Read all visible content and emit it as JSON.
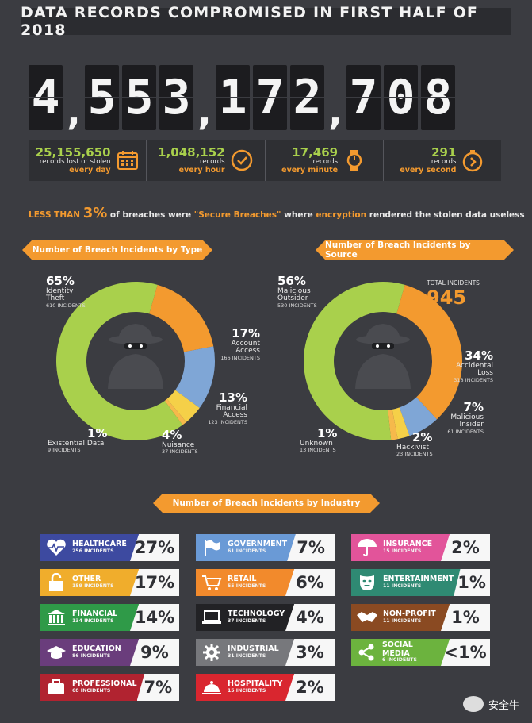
{
  "title": "DATA RECORDS COMPROMISED IN FIRST HALF OF 2018",
  "counter": [
    "4",
    ",",
    "5",
    "5",
    "3",
    ",",
    "1",
    "7",
    "2",
    ",",
    "7",
    "0",
    "8"
  ],
  "rates": [
    {
      "value": "25,155,650",
      "label": "records lost or stolen",
      "unit": "every day",
      "icon": "calendar-icon"
    },
    {
      "value": "1,048,152",
      "label": "records",
      "unit": "every hour",
      "icon": "clock-icon"
    },
    {
      "value": "17,469",
      "label": "records",
      "unit": "every minute",
      "icon": "watch-icon"
    },
    {
      "value": "291",
      "label": "records",
      "unit": "every second",
      "icon": "stopwatch-icon"
    }
  ],
  "note": {
    "lead": "LESS THAN",
    "pct": "3%",
    "mid1": " of breaches were ",
    "quote": "\"Secure Breaches\"",
    "mid2": " where ",
    "enc": "encryption",
    "tail": " rendered the stolen data useless"
  },
  "ribbons": {
    "type": "Number of Breach Incidents by Type",
    "source": "Number of Breach Incidents by Source",
    "industry": "Number of Breach Incidents by Industry"
  },
  "total": {
    "label": "TOTAL INCIDENTS",
    "value": "945"
  },
  "colors": {
    "green": "#a9d04c",
    "orange": "#f39a2f",
    "blue": "#7fa6d6",
    "yellow": "#f5d048",
    "orange_light": "#f6b94b"
  },
  "chart_data": [
    {
      "type": "pie",
      "title": "Number of Breach Incidents by Type",
      "slices": [
        {
          "pct": "65%",
          "name": "Identity Theft",
          "incidents": "610 INCIDENTS",
          "value": 610,
          "color": "#a9d04c"
        },
        {
          "pct": "17%",
          "name": "Account Access",
          "incidents": "166 INCIDENTS",
          "value": 166,
          "color": "#f39a2f"
        },
        {
          "pct": "13%",
          "name": "Financial Access",
          "incidents": "123 INCIDENTS",
          "value": 123,
          "color": "#7fa6d6"
        },
        {
          "pct": "4%",
          "name": "Nuisance",
          "incidents": "37 INCIDENTS",
          "value": 37,
          "color": "#f5d048"
        },
        {
          "pct": "1%",
          "name": "Existential Data",
          "incidents": "9 INCIDENTS",
          "value": 9,
          "color": "#f6b94b"
        }
      ]
    },
    {
      "type": "pie",
      "title": "Number of Breach Incidents by Source",
      "slices": [
        {
          "pct": "56%",
          "name": "Malicious Outsider",
          "incidents": "530 INCIDENTS",
          "value": 530,
          "color": "#a9d04c"
        },
        {
          "pct": "34%",
          "name": "Accidental Loss",
          "incidents": "318 INCIDENTS",
          "value": 318,
          "color": "#f39a2f"
        },
        {
          "pct": "7%",
          "name": "Malicious Insider",
          "incidents": "61 INCIDENTS",
          "value": 61,
          "color": "#7fa6d6"
        },
        {
          "pct": "2%",
          "name": "Hackivist",
          "incidents": "23 INCIDENTS",
          "value": 23,
          "color": "#f5d048"
        },
        {
          "pct": "1%",
          "name": "Unknown",
          "incidents": "13 INCIDENTS",
          "value": 13,
          "color": "#f6b94b"
        }
      ]
    },
    {
      "type": "table",
      "title": "Number of Breach Incidents by Industry",
      "rows": [
        {
          "name": "HEALTHCARE",
          "incidents": "256 INCIDENTS",
          "pct": "27%",
          "color": "#3d4aa0",
          "icon": "heartbeat-icon"
        },
        {
          "name": "OTHER",
          "incidents": "159 INCIDENTS",
          "pct": "17%",
          "color": "#f0ad2c",
          "icon": "padlock-icon"
        },
        {
          "name": "FINANCIAL",
          "incidents": "134 INCIDENTS",
          "pct": "14%",
          "color": "#2f9a48",
          "icon": "bank-icon"
        },
        {
          "name": "EDUCATION",
          "incidents": "86 INCIDENTS",
          "pct": "9%",
          "color": "#6a3d7c",
          "icon": "graduation-cap-icon"
        },
        {
          "name": "PROFESSIONAL",
          "incidents": "68 INCIDENTS",
          "pct": "7%",
          "color": "#b12330",
          "icon": "briefcase-icon"
        },
        {
          "name": "GOVERNMENT",
          "incidents": "61 INCIDENTS",
          "pct": "7%",
          "color": "#6a9ad6",
          "icon": "flag-icon"
        },
        {
          "name": "RETAIL",
          "incidents": "55 INCIDENTS",
          "pct": "6%",
          "color": "#f28a2c",
          "icon": "cart-icon"
        },
        {
          "name": "TECHNOLOGY",
          "incidents": "37 INCIDENTS",
          "pct": "4%",
          "color": "#222225",
          "icon": "laptop-icon"
        },
        {
          "name": "INDUSTRIAL",
          "incidents": "31 INCIDENTS",
          "pct": "3%",
          "color": "#77787c",
          "icon": "gear-icon"
        },
        {
          "name": "HOSPITALITY",
          "incidents": "15 INCIDENTS",
          "pct": "2%",
          "color": "#d9262f",
          "icon": "bell-icon"
        },
        {
          "name": "INSURANCE",
          "incidents": "15 INCIDENTS",
          "pct": "2%",
          "color": "#e2549a",
          "icon": "umbrella-icon"
        },
        {
          "name": "ENTERTAINMENT",
          "incidents": "11 INCIDENTS",
          "pct": "1%",
          "color": "#2f8a73",
          "icon": "mask-icon"
        },
        {
          "name": "NON-PROFIT",
          "incidents": "11 INCIDENTS",
          "pct": "1%",
          "color": "#8a4a22",
          "icon": "handshake-icon"
        },
        {
          "name": "SOCIAL MEDIA",
          "incidents": "6 INCIDENTS",
          "pct": "<1%",
          "color": "#6cb33e",
          "icon": "share-icon"
        }
      ]
    }
  ],
  "watermark": "安全牛"
}
